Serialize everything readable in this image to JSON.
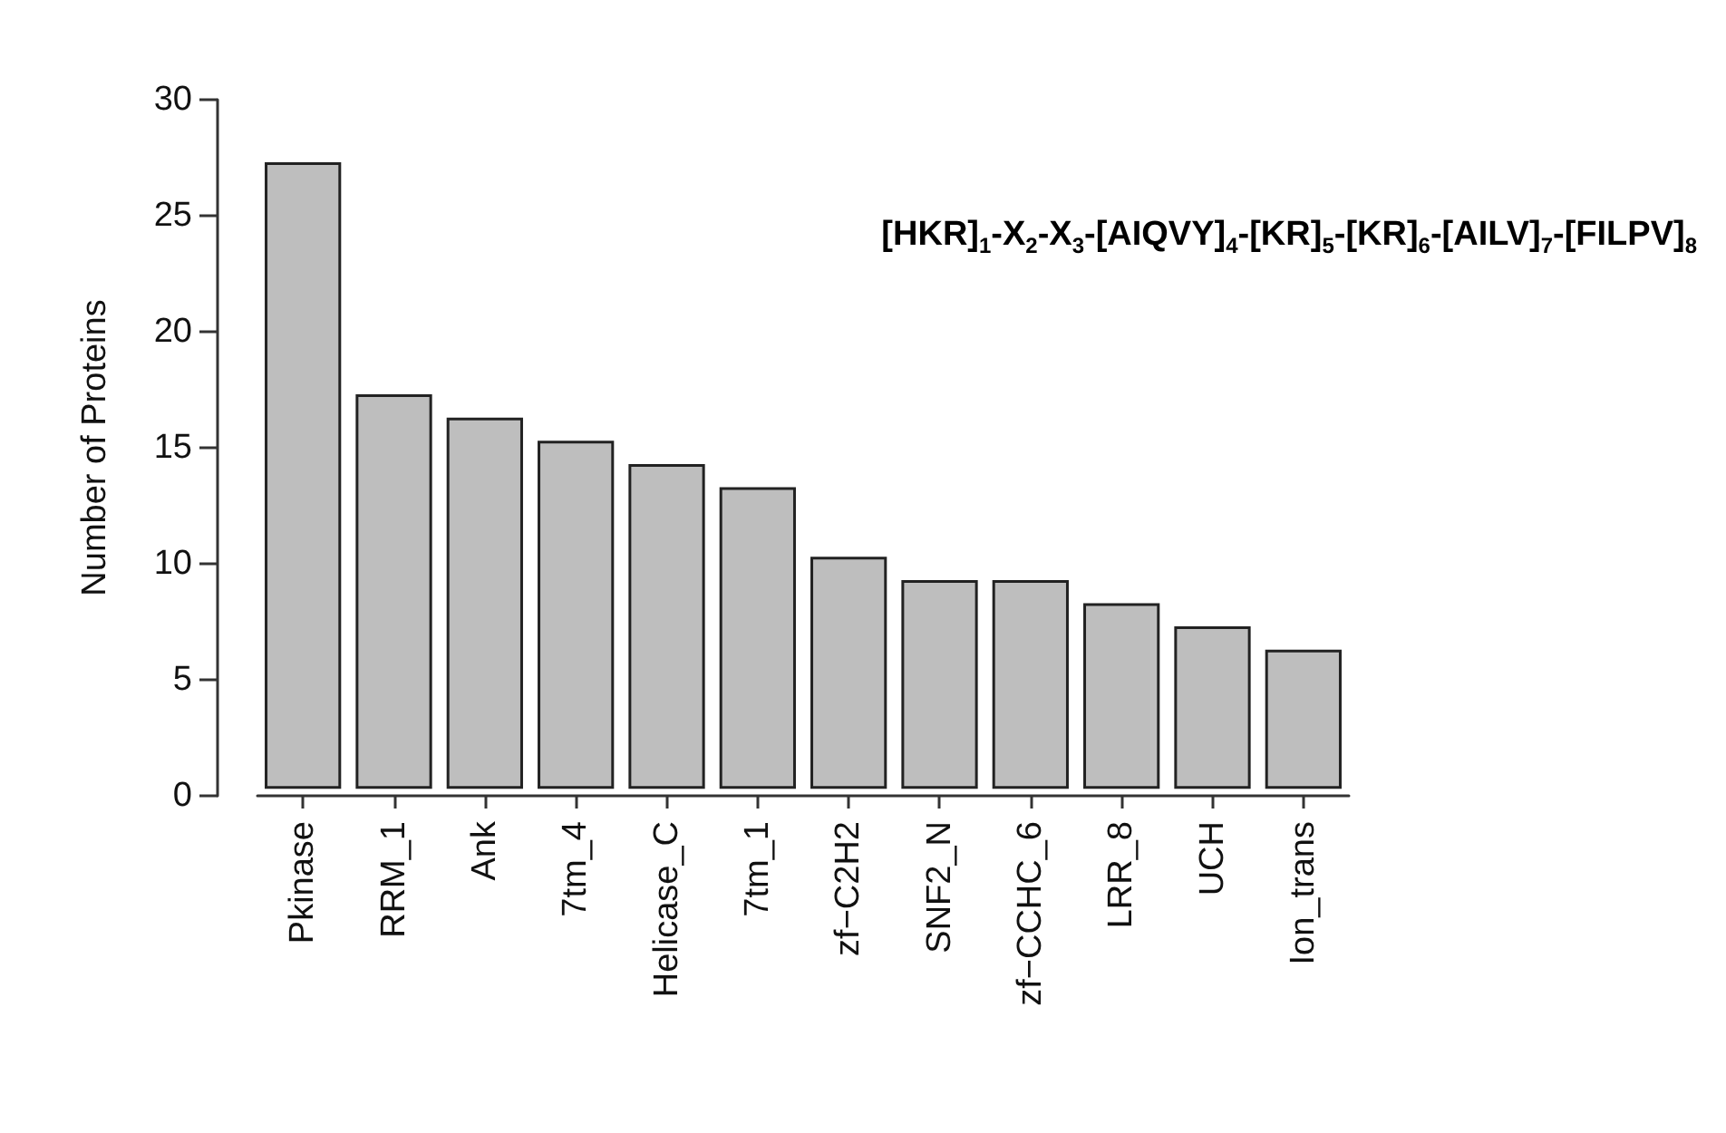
{
  "chart_data": {
    "type": "bar",
    "ylabel": "Number of Proteins",
    "categories": [
      "Pkinase",
      "RRM_1",
      "Ank",
      "7tm_4",
      "Helicase_C",
      "7tm_1",
      "zf−C2H2",
      "SNF2_N",
      "zf−CCHC_6",
      "LRR_8",
      "UCH",
      "Ion_trans"
    ],
    "values": [
      27,
      17,
      16,
      15,
      14,
      13,
      10,
      9,
      9,
      8,
      7,
      6
    ],
    "base": [
      0.3,
      0.3,
      0.3,
      0.3,
      0.3,
      0.3,
      0.3,
      0.3,
      0.3,
      0.3,
      0.3,
      0.3
    ],
    "color": "#bebebe",
    "ylim": [
      0,
      30
    ],
    "yticks": [
      0,
      5,
      10,
      15,
      20,
      25,
      30
    ],
    "annotations": [
      "[HKR]$_{1}$-X$_{2}$-X$_{3}$-[AIQVY]$_{4}$-[KR]$_{5}$-[KR]$_{6}$-[AILV]$_{7}$-[FILPV]$_{8}$"
    ]
  }
}
